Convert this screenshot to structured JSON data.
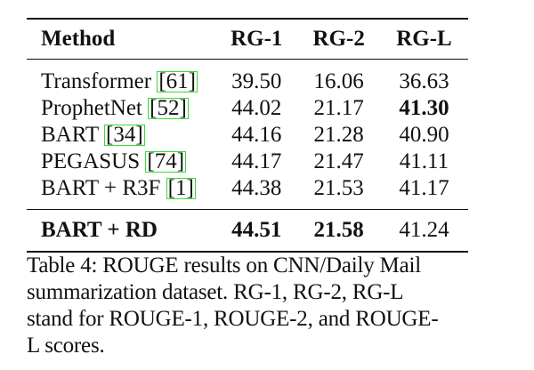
{
  "table": {
    "headers": [
      "Method",
      "RG-1",
      "RG-2",
      "RG-L"
    ],
    "rows": [
      {
        "method": "Transformer",
        "cite": "61",
        "rg1": "39.50",
        "rg2": "16.06",
        "rgl": "36.63"
      },
      {
        "method": "ProphetNet",
        "cite": "52",
        "rg1": "44.02",
        "rg2": "21.17",
        "rgl": "41.30"
      },
      {
        "method": "BART",
        "cite": "34",
        "rg1": "44.16",
        "rg2": "21.28",
        "rgl": "40.90"
      },
      {
        "method": "PEGASUS",
        "cite": "74",
        "rg1": "44.17",
        "rg2": "21.47",
        "rgl": "41.11"
      },
      {
        "method": "BART + R3F",
        "cite": "1",
        "rg1": "44.38",
        "rg2": "21.53",
        "rgl": "41.17"
      }
    ],
    "final_row": {
      "method": "BART + RD",
      "rg1": "44.51",
      "rg2": "21.58",
      "rgl": "41.24"
    }
  },
  "caption": {
    "lines": [
      "Table 4: ROUGE results on CNN/Daily Mail",
      "summarization dataset.  RG-1, RG-2, RG-L",
      "stand for ROUGE-1, ROUGE-2, and ROUGE-",
      "L scores."
    ]
  }
}
